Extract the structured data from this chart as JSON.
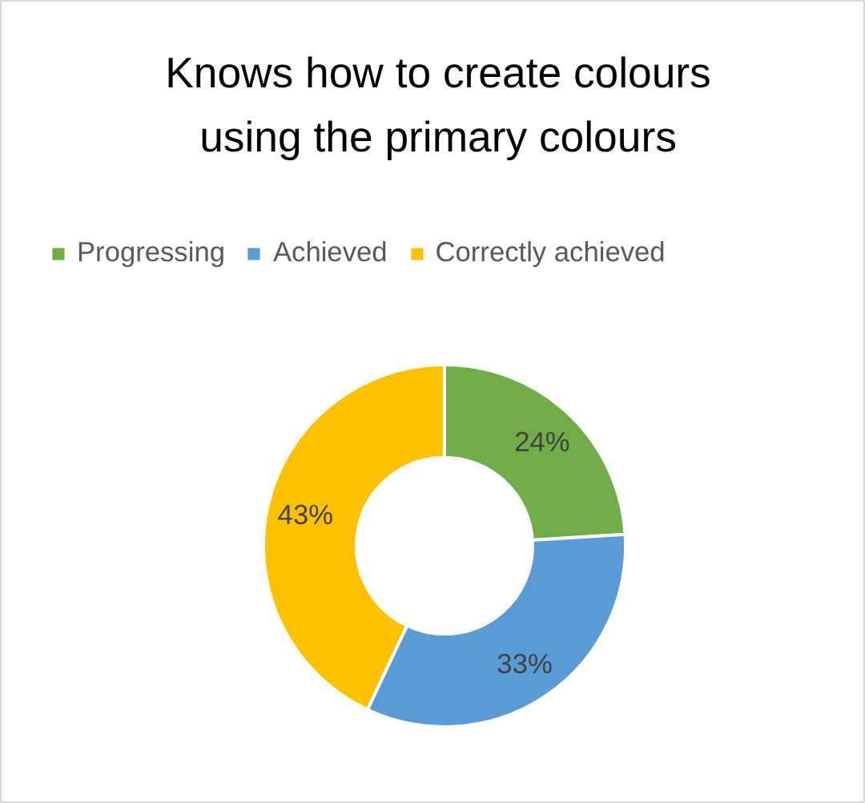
{
  "chart_data": {
    "type": "donut",
    "title": "Knows how to create colours using the primary colours",
    "categories": [
      "Progressing",
      "Achieved",
      "Correctly achieved"
    ],
    "values": [
      24,
      33,
      43
    ],
    "colors": [
      "#70ad47",
      "#5b9bd5",
      "#ffc000"
    ],
    "value_labels": [
      "24%",
      "33%",
      "43%"
    ],
    "legend": "top"
  }
}
